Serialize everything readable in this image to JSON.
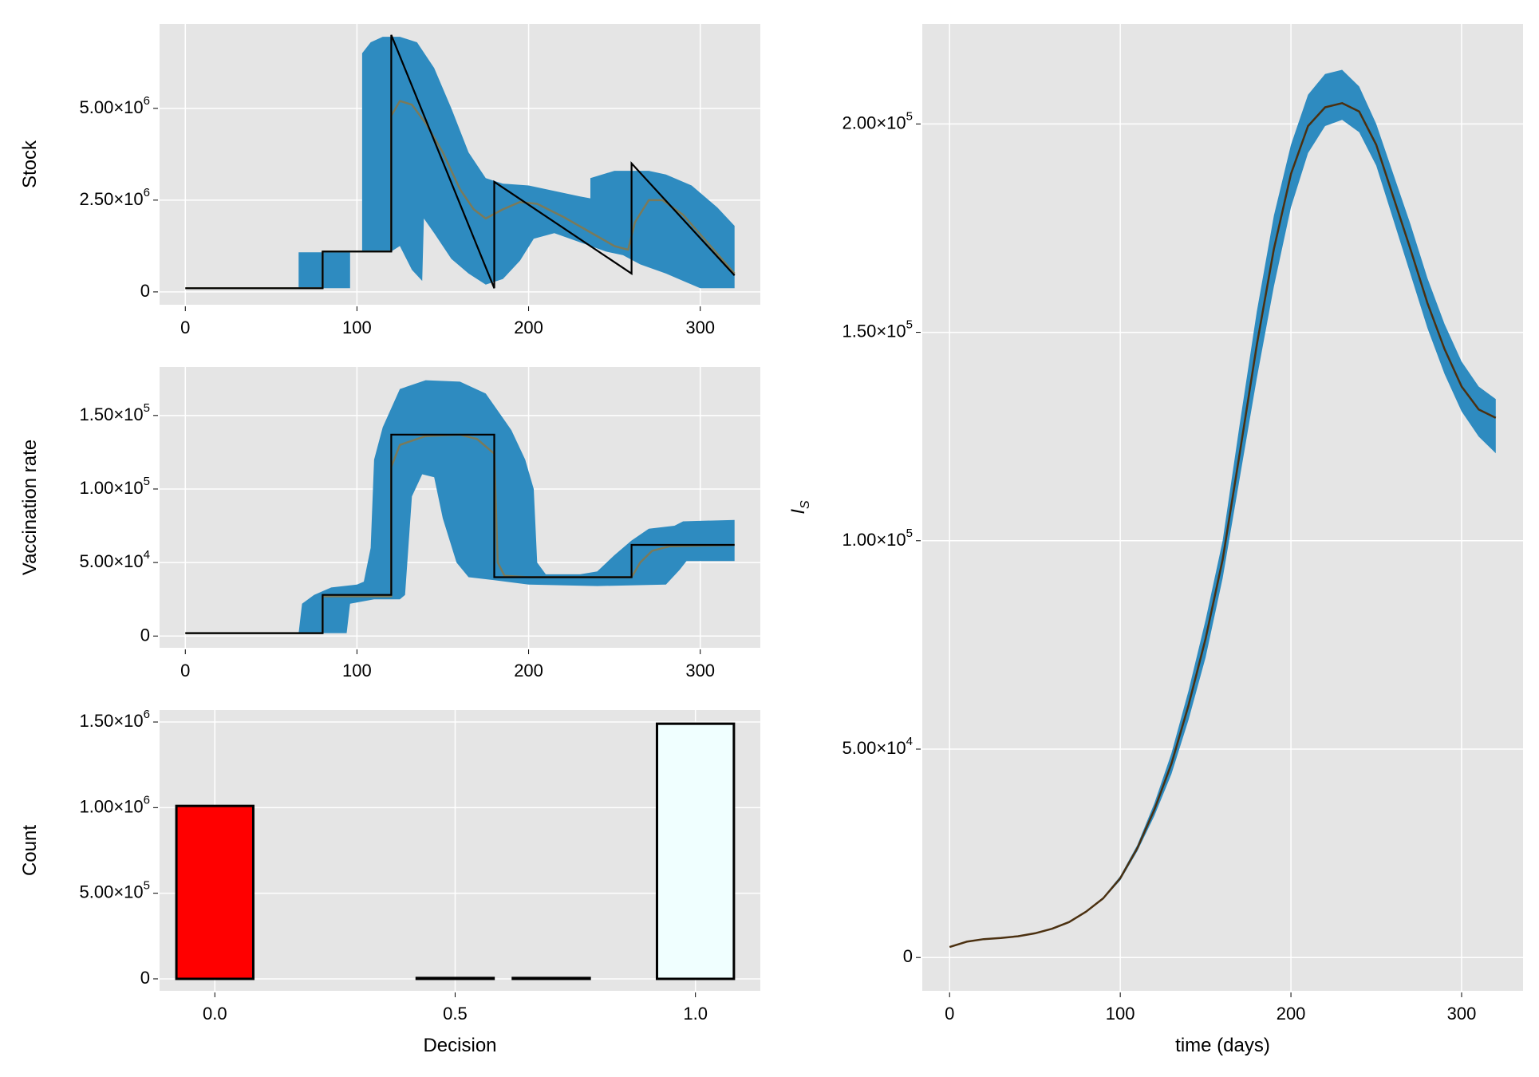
{
  "colors": {
    "band": "#2e8bc0",
    "mean": "#7a7a5a",
    "deterministic": "#000000",
    "si_line": "#4b3010",
    "panel_bg": "#e5e5e5",
    "grid": "#ffffff",
    "bar_decision_0": "#ff0000",
    "bar_decision_1": "#f0ffff"
  },
  "chart_data": [
    {
      "id": "stock",
      "type": "area",
      "ylabel": "Stock",
      "xlabel": "",
      "xlim": [
        -15,
        335
      ],
      "ylim": [
        -350000,
        7300000
      ],
      "x_ticks": [
        0,
        100,
        200,
        300
      ],
      "x_tick_labels": [
        "0",
        "100",
        "200",
        "300"
      ],
      "y_ticks": [
        0,
        2500000,
        5000000
      ],
      "y_tick_labels": [
        {
          "mantissa": "0",
          "exp": ""
        },
        {
          "mantissa": "2.50×10",
          "exp": "6"
        },
        {
          "mantissa": "5.00×10",
          "exp": "6"
        }
      ],
      "band_upper": [
        [
          0,
          100000
        ],
        [
          66,
          100000
        ],
        [
          66,
          1080000
        ],
        [
          80,
          1080000
        ],
        [
          80,
          1100000
        ],
        [
          103,
          1100000
        ],
        [
          103,
          6500000
        ],
        [
          108,
          6800000
        ],
        [
          115,
          6950000
        ],
        [
          125,
          6950000
        ],
        [
          135,
          6800000
        ],
        [
          145,
          6100000
        ],
        [
          155,
          5000000
        ],
        [
          165,
          3800000
        ],
        [
          175,
          3100000
        ],
        [
          185,
          2950000
        ],
        [
          200,
          2900000
        ],
        [
          215,
          2750000
        ],
        [
          230,
          2600000
        ],
        [
          236,
          2550000
        ],
        [
          236,
          3100000
        ],
        [
          250,
          3300000
        ],
        [
          270,
          3300000
        ],
        [
          280,
          3200000
        ],
        [
          295,
          2900000
        ],
        [
          310,
          2300000
        ],
        [
          320,
          1800000
        ]
      ],
      "band_lower": [
        [
          0,
          100000
        ],
        [
          66,
          100000
        ],
        [
          96,
          100000
        ],
        [
          96,
          1100000
        ],
        [
          120,
          1100000
        ],
        [
          125,
          1250000
        ],
        [
          132,
          600000
        ],
        [
          138,
          300000
        ],
        [
          139,
          2000000
        ],
        [
          145,
          1600000
        ],
        [
          155,
          900000
        ],
        [
          165,
          500000
        ],
        [
          175,
          200000
        ],
        [
          185,
          350000
        ],
        [
          195,
          850000
        ],
        [
          203,
          1450000
        ],
        [
          215,
          1600000
        ],
        [
          230,
          1350000
        ],
        [
          245,
          1100000
        ],
        [
          255,
          1000000
        ],
        [
          265,
          750000
        ],
        [
          280,
          500000
        ],
        [
          290,
          300000
        ],
        [
          300,
          100000
        ],
        [
          320,
          100000
        ]
      ],
      "mean": [
        [
          0,
          100000
        ],
        [
          80,
          100000
        ],
        [
          80,
          1100000
        ],
        [
          120,
          1100000
        ],
        [
          120,
          4800000
        ],
        [
          125,
          5200000
        ],
        [
          132,
          5100000
        ],
        [
          140,
          4600000
        ],
        [
          150,
          3800000
        ],
        [
          160,
          2800000
        ],
        [
          168,
          2250000
        ],
        [
          175,
          2000000
        ],
        [
          185,
          2250000
        ],
        [
          195,
          2450000
        ],
        [
          205,
          2400000
        ],
        [
          220,
          2050000
        ],
        [
          235,
          1650000
        ],
        [
          250,
          1250000
        ],
        [
          258,
          1150000
        ],
        [
          262,
          1900000
        ],
        [
          270,
          2500000
        ],
        [
          278,
          2500000
        ],
        [
          290,
          2100000
        ],
        [
          305,
          1300000
        ],
        [
          320,
          500000
        ]
      ],
      "deterministic": [
        [
          0,
          100000
        ],
        [
          80,
          100000
        ],
        [
          80,
          1100000
        ],
        [
          120,
          1100000
        ],
        [
          120,
          7000000
        ],
        [
          180,
          100000
        ],
        [
          180,
          3000000
        ],
        [
          260,
          500000
        ],
        [
          260,
          3500000
        ],
        [
          320,
          450000
        ]
      ]
    },
    {
      "id": "vaccination",
      "type": "area",
      "ylabel": "Vaccination rate",
      "xlabel": "",
      "xlim": [
        -15,
        335
      ],
      "ylim": [
        -8000,
        183000
      ],
      "x_ticks": [
        0,
        100,
        200,
        300
      ],
      "x_tick_labels": [
        "0",
        "100",
        "200",
        "300"
      ],
      "y_ticks": [
        0,
        50000,
        100000,
        150000
      ],
      "y_tick_labels": [
        {
          "mantissa": "0",
          "exp": ""
        },
        {
          "mantissa": "5.00×10",
          "exp": "4"
        },
        {
          "mantissa": "1.00×10",
          "exp": "5"
        },
        {
          "mantissa": "1.50×10",
          "exp": "5"
        }
      ],
      "band_upper": [
        [
          0,
          2000
        ],
        [
          66,
          2000
        ],
        [
          68,
          22000
        ],
        [
          75,
          28000
        ],
        [
          85,
          33000
        ],
        [
          100,
          35000
        ],
        [
          104,
          37000
        ],
        [
          108,
          60000
        ],
        [
          110,
          120000
        ],
        [
          115,
          142000
        ],
        [
          125,
          168000
        ],
        [
          140,
          174000
        ],
        [
          160,
          173000
        ],
        [
          175,
          165000
        ],
        [
          190,
          140000
        ],
        [
          198,
          120000
        ],
        [
          203,
          100000
        ],
        [
          205,
          50000
        ],
        [
          210,
          42000
        ],
        [
          230,
          42000
        ],
        [
          240,
          44000
        ],
        [
          250,
          55000
        ],
        [
          260,
          65000
        ],
        [
          270,
          73000
        ],
        [
          285,
          75000
        ],
        [
          290,
          78000
        ],
        [
          320,
          79000
        ]
      ],
      "band_lower": [
        [
          0,
          2000
        ],
        [
          66,
          2000
        ],
        [
          94,
          2000
        ],
        [
          96,
          22000
        ],
        [
          110,
          25000
        ],
        [
          118,
          25000
        ],
        [
          125,
          25000
        ],
        [
          128,
          28000
        ],
        [
          132,
          95000
        ],
        [
          138,
          110000
        ],
        [
          145,
          108000
        ],
        [
          150,
          80000
        ],
        [
          158,
          50000
        ],
        [
          165,
          40000
        ],
        [
          180,
          38000
        ],
        [
          200,
          35000
        ],
        [
          240,
          34000
        ],
        [
          280,
          35000
        ],
        [
          288,
          45000
        ],
        [
          292,
          51000
        ],
        [
          320,
          51000
        ]
      ],
      "mean": [
        [
          0,
          2000
        ],
        [
          80,
          2000
        ],
        [
          80,
          27000
        ],
        [
          120,
          27000
        ],
        [
          120,
          115000
        ],
        [
          125,
          130000
        ],
        [
          140,
          136000
        ],
        [
          160,
          137000
        ],
        [
          170,
          134000
        ],
        [
          180,
          124000
        ],
        [
          182,
          50000
        ],
        [
          186,
          41000
        ],
        [
          200,
          40000
        ],
        [
          260,
          40000
        ],
        [
          265,
          50000
        ],
        [
          272,
          58000
        ],
        [
          282,
          61000
        ],
        [
          320,
          62000
        ]
      ],
      "deterministic": [
        [
          0,
          2000
        ],
        [
          80,
          2000
        ],
        [
          80,
          28000
        ],
        [
          120,
          28000
        ],
        [
          120,
          137000
        ],
        [
          180,
          137000
        ],
        [
          180,
          40000
        ],
        [
          260,
          40000
        ],
        [
          260,
          62000
        ],
        [
          320,
          62000
        ]
      ]
    },
    {
      "id": "decision",
      "type": "bar",
      "xlabel": "Decision",
      "ylabel": "Count",
      "xlim": [
        -0.115,
        1.135
      ],
      "ylim": [
        -70000,
        1570000
      ],
      "x_ticks": [
        0.0,
        0.5,
        1.0
      ],
      "x_tick_labels": [
        "0.0",
        "0.5",
        "1.0"
      ],
      "y_ticks": [
        0,
        500000,
        1000000,
        1500000
      ],
      "y_tick_labels": [
        {
          "mantissa": "0",
          "exp": ""
        },
        {
          "mantissa": "5.00×10",
          "exp": "5"
        },
        {
          "mantissa": "1.00×10",
          "exp": "6"
        },
        {
          "mantissa": "1.50×10",
          "exp": "6"
        }
      ],
      "bar_width": 0.16,
      "bars": [
        {
          "x": 0.0,
          "value": 1010000,
          "color": "#ff0000"
        },
        {
          "x": 0.5,
          "value": 5000,
          "color": "#e5e5e5"
        },
        {
          "x": 0.7,
          "value": 5000,
          "color": "#e5e5e5"
        },
        {
          "x": 1.0,
          "value": 1490000,
          "color": "#f0ffff"
        }
      ]
    },
    {
      "id": "infected",
      "type": "area",
      "xlabel": "time (days)",
      "ylabel_main": "I",
      "ylabel_sub": "S",
      "xlim": [
        -16,
        336
      ],
      "ylim": [
        -8000,
        224000
      ],
      "x_ticks": [
        0,
        100,
        200,
        300
      ],
      "x_tick_labels": [
        "0",
        "100",
        "200",
        "300"
      ],
      "y_ticks": [
        0,
        50000,
        100000,
        150000,
        200000
      ],
      "y_tick_labels": [
        {
          "mantissa": "0",
          "exp": ""
        },
        {
          "mantissa": "5.00×10",
          "exp": "4"
        },
        {
          "mantissa": "1.00×10",
          "exp": "5"
        },
        {
          "mantissa": "1.50×10",
          "exp": "5"
        },
        {
          "mantissa": "2.00×10",
          "exp": "5"
        }
      ],
      "band_upper": [
        [
          0,
          2500
        ],
        [
          10,
          3800
        ],
        [
          20,
          4400
        ],
        [
          30,
          4700
        ],
        [
          40,
          5100
        ],
        [
          50,
          5800
        ],
        [
          60,
          6900
        ],
        [
          70,
          8500
        ],
        [
          80,
          11000
        ],
        [
          90,
          14500
        ],
        [
          100,
          19500
        ],
        [
          110,
          27000
        ],
        [
          120,
          37000
        ],
        [
          130,
          49000
        ],
        [
          140,
          64000
        ],
        [
          150,
          81000
        ],
        [
          160,
          100000
        ],
        [
          170,
          128000
        ],
        [
          180,
          155000
        ],
        [
          190,
          178000
        ],
        [
          200,
          195000
        ],
        [
          210,
          207000
        ],
        [
          220,
          212000
        ],
        [
          230,
          213000
        ],
        [
          240,
          209000
        ],
        [
          250,
          200000
        ],
        [
          260,
          188000
        ],
        [
          270,
          176000
        ],
        [
          280,
          163000
        ],
        [
          290,
          152000
        ],
        [
          300,
          143000
        ],
        [
          310,
          137000
        ],
        [
          320,
          134000
        ]
      ],
      "band_lower": [
        [
          0,
          2500
        ],
        [
          10,
          3800
        ],
        [
          20,
          4400
        ],
        [
          30,
          4700
        ],
        [
          40,
          5100
        ],
        [
          50,
          5800
        ],
        [
          60,
          6900
        ],
        [
          70,
          8500
        ],
        [
          80,
          11000
        ],
        [
          90,
          14000
        ],
        [
          100,
          18500
        ],
        [
          110,
          25500
        ],
        [
          120,
          34000
        ],
        [
          130,
          44000
        ],
        [
          140,
          57000
        ],
        [
          150,
          72000
        ],
        [
          160,
          91000
        ],
        [
          170,
          115000
        ],
        [
          180,
          139000
        ],
        [
          190,
          161000
        ],
        [
          200,
          180000
        ],
        [
          210,
          193000
        ],
        [
          220,
          199500
        ],
        [
          230,
          201000
        ],
        [
          240,
          198000
        ],
        [
          250,
          190000
        ],
        [
          260,
          177000
        ],
        [
          270,
          164000
        ],
        [
          280,
          151000
        ],
        [
          290,
          140000
        ],
        [
          300,
          131000
        ],
        [
          310,
          125000
        ],
        [
          320,
          121000
        ]
      ],
      "mean": [
        [
          0,
          2500
        ],
        [
          10,
          3800
        ],
        [
          20,
          4400
        ],
        [
          30,
          4700
        ],
        [
          40,
          5100
        ],
        [
          50,
          5800
        ],
        [
          60,
          6900
        ],
        [
          70,
          8500
        ],
        [
          80,
          11000
        ],
        [
          90,
          14200
        ],
        [
          100,
          19000
        ],
        [
          110,
          26200
        ],
        [
          120,
          35500
        ],
        [
          130,
          46500
        ],
        [
          140,
          60500
        ],
        [
          150,
          76500
        ],
        [
          160,
          95500
        ],
        [
          170,
          121000
        ],
        [
          180,
          147000
        ],
        [
          190,
          170000
        ],
        [
          200,
          188000
        ],
        [
          210,
          199500
        ],
        [
          220,
          204000
        ],
        [
          230,
          205000
        ],
        [
          240,
          203000
        ],
        [
          250,
          195000
        ],
        [
          260,
          182500
        ],
        [
          270,
          170000
        ],
        [
          280,
          157000
        ],
        [
          290,
          146000
        ],
        [
          300,
          137000
        ],
        [
          310,
          131500
        ],
        [
          320,
          129500
        ]
      ]
    }
  ]
}
